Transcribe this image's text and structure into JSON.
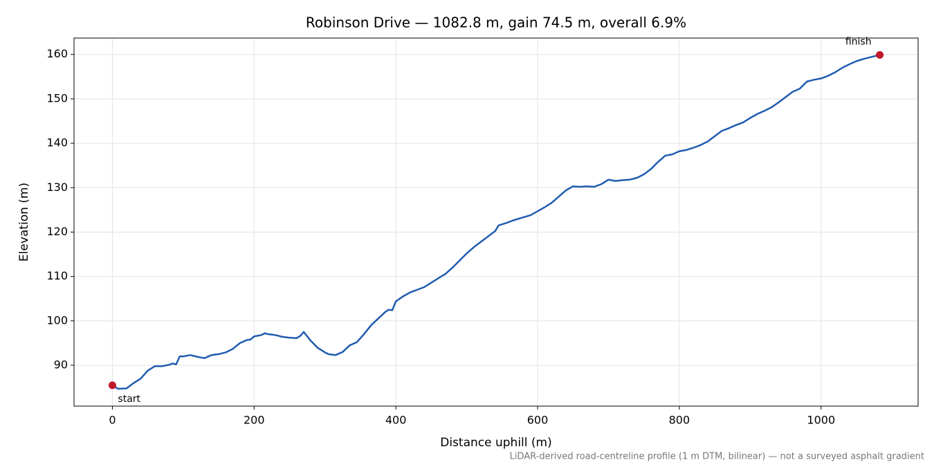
{
  "chart_data": {
    "type": "line",
    "title": "Robinson Drive — 1082.8 m, gain 74.5 m, overall 6.9%",
    "xlabel": "Distance uphill (m)",
    "ylabel": "Elevation (m)",
    "footnote": "LiDAR-derived road-centreline profile (1 m DTM, bilinear) — not a surveyed asphalt gradient",
    "x": [
      0,
      8,
      20,
      30,
      40,
      50,
      60,
      70,
      80,
      85,
      90,
      95,
      100,
      110,
      120,
      130,
      140,
      150,
      160,
      170,
      180,
      190,
      195,
      200,
      210,
      215,
      220,
      230,
      240,
      250,
      260,
      265,
      270,
      275,
      280,
      290,
      300,
      305,
      315,
      325,
      335,
      345,
      355,
      365,
      375,
      385,
      390,
      395,
      400,
      410,
      420,
      430,
      440,
      450,
      460,
      470,
      480,
      490,
      500,
      510,
      520,
      530,
      540,
      545,
      555,
      565,
      575,
      590,
      600,
      610,
      620,
      630,
      640,
      650,
      660,
      670,
      680,
      690,
      700,
      710,
      720,
      730,
      740,
      750,
      760,
      770,
      780,
      790,
      800,
      810,
      820,
      830,
      840,
      850,
      860,
      870,
      880,
      890,
      900,
      910,
      920,
      930,
      940,
      950,
      960,
      970,
      980,
      990,
      1000,
      1010,
      1020,
      1030,
      1040,
      1050,
      1060,
      1070,
      1082.8
    ],
    "series": [
      {
        "name": "Elevation",
        "color": "#1f5bb0",
        "values": [
          85.5,
          84.7,
          84.8,
          86,
          87,
          88.8,
          89.8,
          89.8,
          90.1,
          90.4,
          90.2,
          92,
          92,
          92.3,
          91.9,
          91.6,
          92.3,
          92.5,
          92.9,
          93.7,
          95,
          95.7,
          95.8,
          96.5,
          96.8,
          97.2,
          97,
          96.8,
          96.4,
          96.2,
          96.1,
          96.6,
          97.5,
          96.5,
          95.5,
          93.9,
          92.9,
          92.5,
          92.3,
          93,
          94.5,
          95.2,
          97,
          99,
          100.5,
          102,
          102.5,
          102.4,
          104.4,
          105.5,
          106.4,
          107,
          107.6,
          108.6,
          109.6,
          110.6,
          112,
          113.6,
          115.2,
          116.6,
          117.8,
          119,
          120.2,
          121.5,
          122,
          122.6,
          123.1,
          123.8,
          124.7,
          125.6,
          126.6,
          128,
          129.4,
          130.3,
          130.2,
          130.3,
          130.2,
          130.8,
          131.8,
          131.5,
          131.7,
          131.8,
          132.2,
          133,
          134.2,
          135.8,
          137.2,
          137.5,
          138.2,
          138.5,
          139,
          139.6,
          140.4,
          141.6,
          142.8,
          143.4,
          144.1,
          144.7,
          145.7,
          146.6,
          147.3,
          148.1,
          149.2,
          150.4,
          151.6,
          152.3,
          153.9,
          154.3,
          154.6,
          155.2,
          156,
          157,
          157.8,
          158.5,
          159,
          159.4,
          159.9
        ]
      }
    ],
    "markers": [
      {
        "label": "start",
        "x": 0,
        "y": 85.5,
        "color": "#c0192b"
      },
      {
        "label": "finish",
        "x": 1082.8,
        "y": 159.9,
        "color": "#c0192b"
      }
    ],
    "xlim": [
      -54.1,
      1136.9
    ],
    "ylim": [
      80.8,
      163.7
    ],
    "xticks": [
      0,
      200,
      400,
      600,
      800,
      1000
    ],
    "yticks": [
      90,
      100,
      110,
      120,
      130,
      140,
      150,
      160
    ],
    "grid": true
  }
}
